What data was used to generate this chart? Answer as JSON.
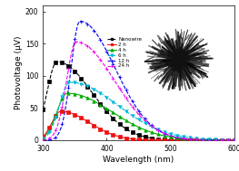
{
  "title": "",
  "xlabel": "Wavelength (nm)",
  "ylabel": "Photovoltage (μV)",
  "xlim": [
    300,
    600
  ],
  "ylim": [
    0,
    210
  ],
  "yticks": [
    0,
    50,
    100,
    150,
    200
  ],
  "xticks": [
    300,
    400,
    500,
    600
  ],
  "series": [
    {
      "label": "Nanowire",
      "color": "#000000",
      "linestyle": "--",
      "marker": "s",
      "markersize": 2.5,
      "peak_x": 322,
      "peak_y": 122,
      "sigma_l": 16,
      "sigma_r": 55
    },
    {
      "label": "2 h",
      "color": "#ee1111",
      "linestyle": "-",
      "marker": "s",
      "markersize": 2.5,
      "peak_x": 328,
      "peak_y": 45,
      "sigma_l": 14,
      "sigma_r": 45
    },
    {
      "label": "4 h",
      "color": "#00aa00",
      "linestyle": "-",
      "marker": "^",
      "markersize": 2.5,
      "peak_x": 338,
      "peak_y": 73,
      "sigma_l": 16,
      "sigma_r": 70
    },
    {
      "label": "6 h",
      "color": "#00bbdd",
      "linestyle": "--",
      "marker": "v",
      "markersize": 2.5,
      "peak_x": 342,
      "peak_y": 90,
      "sigma_l": 16,
      "sigma_r": 75
    },
    {
      "label": "12 h",
      "color": "#0000ee",
      "linestyle": "--",
      "marker": "+",
      "markersize": 3.5,
      "peak_x": 358,
      "peak_y": 185,
      "sigma_l": 14,
      "sigma_r": 55
    },
    {
      "label": "24 h",
      "color": "#ee00ee",
      "linestyle": "--",
      "marker": "+",
      "markersize": 3.5,
      "peak_x": 352,
      "peak_y": 153,
      "sigma_l": 15,
      "sigma_r": 60
    }
  ],
  "background_color": "#ffffff",
  "inset_bg_color": "#b8b8b8"
}
